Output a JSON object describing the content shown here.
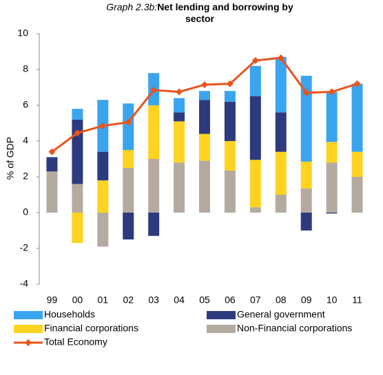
{
  "chart_data": {
    "type": "bar",
    "stacked": true,
    "graph_label": "Graph 2.3b:",
    "title": "Net lending and borrowing by sector",
    "y_label": "% of GDP",
    "categories": [
      "99",
      "00",
      "01",
      "02",
      "03",
      "04",
      "05",
      "06",
      "07",
      "08",
      "09",
      "10",
      "11"
    ],
    "series": [
      {
        "name": "Households",
        "color": "#3ba4ef",
        "values": [
          0,
          0.6,
          2.9,
          2.6,
          1.8,
          0.8,
          0.5,
          0.6,
          1.7,
          3.1,
          4.8,
          2.8,
          3.8
        ]
      },
      {
        "name": "General government",
        "color": "#2e3a7e",
        "values": [
          0.8,
          3.6,
          1.6,
          -1.5,
          -1.3,
          0.5,
          1.9,
          2.2,
          3.55,
          2.2,
          -1.0,
          -0.05,
          0
        ]
      },
      {
        "name": "Financial corporations",
        "color": "#ffd320",
        "values": [
          0,
          -1.7,
          1.8,
          1.0,
          3.0,
          2.3,
          1.5,
          1.65,
          2.65,
          2.4,
          1.5,
          1.15,
          1.4
        ]
      },
      {
        "name": "Non-Financial corporations",
        "color": "#b5aaa0",
        "values": [
          2.3,
          1.6,
          -1.9,
          2.5,
          3.0,
          2.8,
          2.9,
          2.35,
          0.3,
          1.0,
          1.35,
          2.8,
          2.0
        ]
      },
      {
        "name": "Total Economy",
        "color": "#e8541c",
        "type": "line",
        "values": [
          3.4,
          4.45,
          4.85,
          5.05,
          6.85,
          6.75,
          7.15,
          7.2,
          8.5,
          8.65,
          6.7,
          6.75,
          7.2
        ]
      }
    ],
    "ylim": [
      -4,
      10
    ],
    "yticks": [
      -4,
      -2,
      0,
      2,
      4,
      6,
      8,
      10
    ],
    "grid": false
  }
}
